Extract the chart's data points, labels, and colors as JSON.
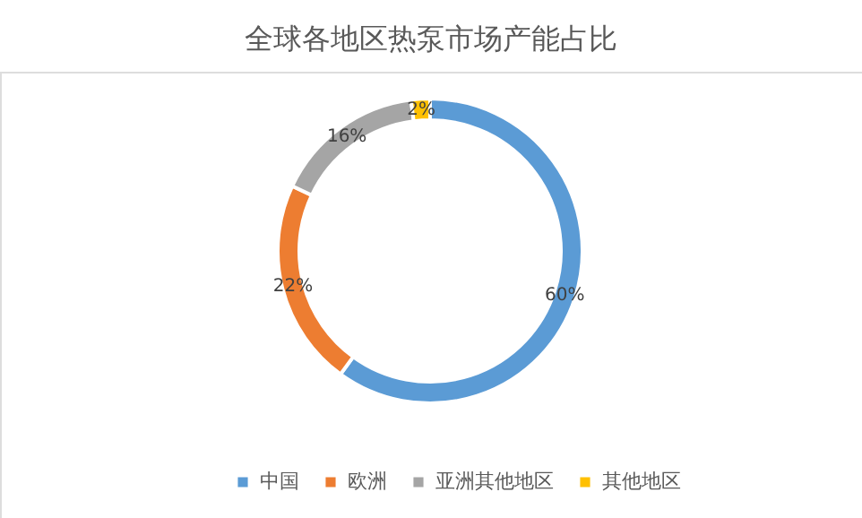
{
  "chart_data": {
    "type": "donut",
    "title": "全球各地区热泵市场产能占比",
    "categories": [
      "中国",
      "欧洲",
      "亚洲其他地区",
      "其他地区"
    ],
    "values": [
      60,
      22,
      16,
      2
    ],
    "colors": [
      "#5b9bd5",
      "#ed7d31",
      "#a5a5a5",
      "#ffc000"
    ],
    "value_labels": [
      "60%",
      "22%",
      "16%",
      "2%"
    ],
    "legend": "bottom"
  }
}
